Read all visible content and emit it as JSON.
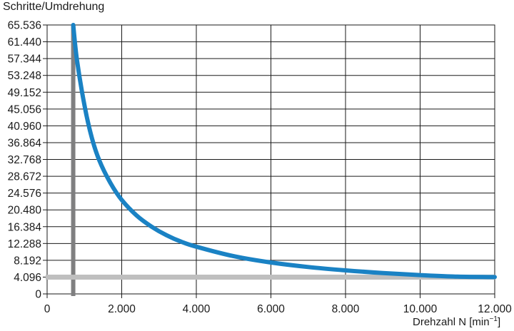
{
  "chart_data": {
    "type": "line",
    "ylabel": "Schritte/Umdrehung",
    "xlabel_main": "Drehzahl N [min",
    "xlabel_sup": "−1",
    "xlabel_close": "]",
    "xlim": [
      0,
      12000
    ],
    "ylim": [
      0,
      65536
    ],
    "x_ticks": [
      0,
      2000,
      4000,
      6000,
      8000,
      10000,
      12000
    ],
    "x_tick_labels": [
      "0",
      "2.000",
      "4.000",
      "6.000",
      "8.000",
      "10.000",
      "12.000"
    ],
    "y_ticks": [
      0,
      4096,
      8192,
      12288,
      16384,
      20480,
      24576,
      28672,
      32768,
      36864,
      40960,
      45056,
      49152,
      53248,
      57344,
      61440,
      65536
    ],
    "y_tick_labels": [
      "0",
      "4.096",
      "8.192",
      "12.288",
      "16.384",
      "20.480",
      "24.576",
      "28.672",
      "32.768",
      "36.864",
      "40.960",
      "45.056",
      "49.152",
      "53.248",
      "57.344",
      "61.440",
      "65.536"
    ],
    "grid": true,
    "series": [
      {
        "color": "#1a82c4",
        "x": [
          700,
          800,
          1000,
          1200,
          1400,
          1700,
          2000,
          2400,
          2800,
          3200,
          3600,
          4000,
          5000,
          6000,
          7000,
          8000,
          9000,
          10000,
          11000,
          12000
        ],
        "y": [
          65536,
          57000,
          46000,
          38000,
          32500,
          27000,
          22900,
          19100,
          16400,
          14300,
          12700,
          11500,
          9200,
          7650,
          6550,
          5730,
          5100,
          4590,
          4200,
          4096
        ]
      }
    ],
    "reference_lines": [
      {
        "orientation": "vertical",
        "x": 700,
        "color": "#7f7f80"
      },
      {
        "orientation": "horizontal",
        "y": 4096,
        "color": "#bfbfbf"
      }
    ]
  }
}
